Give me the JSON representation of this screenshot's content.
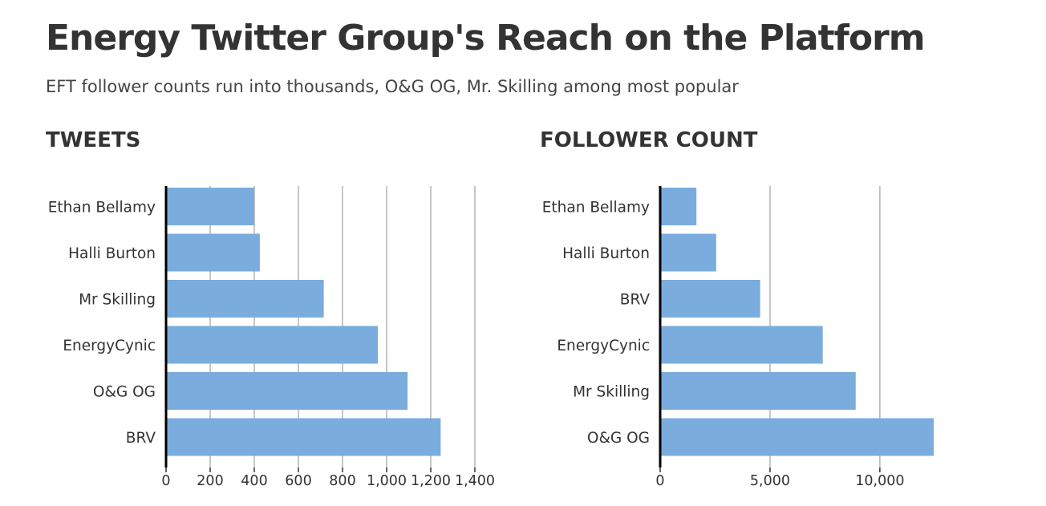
{
  "title": "Energy Twitter Group's Reach on the Platform",
  "subtitle": "EFT follower counts run into thousands, O&G OG, Mr. Skilling among most popular",
  "colors": {
    "bar": "#7aaddd",
    "grid": "#b3b3b3",
    "axis": "#000000",
    "text": "#333333"
  },
  "chart_data": [
    {
      "type": "bar",
      "orientation": "horizontal",
      "title": "TWEETS",
      "categories": [
        "Ethan Bellamy",
        "Halli Burton",
        "Mr Skilling",
        "EnergyCynic",
        "O&G OG",
        "BRV"
      ],
      "values": [
        400,
        425,
        715,
        960,
        1095,
        1245
      ],
      "xlim": [
        0,
        1400
      ],
      "ticks": [
        0,
        200,
        400,
        600,
        800,
        1000,
        1200,
        1400
      ],
      "tick_labels": [
        "0",
        "200",
        "400",
        "600",
        "800",
        "1,000",
        "1,200",
        "1,400"
      ],
      "grid": true
    },
    {
      "type": "bar",
      "orientation": "horizontal",
      "title": "FOLLOWER COUNT",
      "categories": [
        "Ethan Bellamy",
        "Halli Burton",
        "BRV",
        "EnergyCynic",
        "Mr Skilling",
        "O&G OG"
      ],
      "values": [
        1650,
        2550,
        4550,
        7400,
        8900,
        12450
      ],
      "xlim": [
        0,
        12450
      ],
      "ticks": [
        0,
        5000,
        10000
      ],
      "tick_labels": [
        "0",
        "5,000",
        "10,000"
      ],
      "grid": true
    }
  ]
}
